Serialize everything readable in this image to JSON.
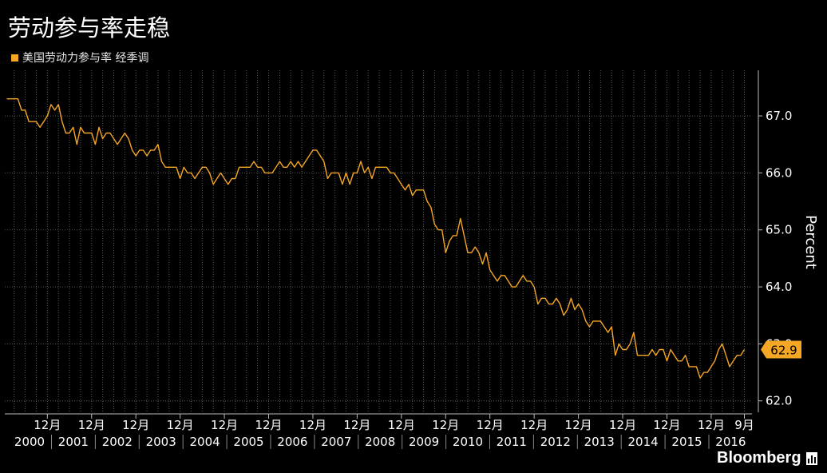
{
  "title": "劳动参与率走稳",
  "legend_label": "美国劳动力参与率 经季调",
  "brand": "Bloomberg",
  "colors": {
    "line": "#f5a623",
    "background": "#000000",
    "grid": "#5a5a5a",
    "text": "#ffffff"
  },
  "chart_data": {
    "type": "line",
    "title": "劳动参与率走稳",
    "ylabel": "Percent",
    "xlabel": "",
    "ylim": [
      61.8,
      67.8
    ],
    "y_ticks": [
      "62.0",
      "63.0",
      "64.0",
      "65.0",
      "66.0",
      "67.0"
    ],
    "x_tick_labels": [
      {
        "month": "12月",
        "year": "2000"
      },
      {
        "month": "12月",
        "year": "2001"
      },
      {
        "month": "12月",
        "year": "2002"
      },
      {
        "month": "12月",
        "year": "2003"
      },
      {
        "month": "12月",
        "year": "2004"
      },
      {
        "month": "12月",
        "year": "2005"
      },
      {
        "month": "12月",
        "year": "2006"
      },
      {
        "month": "12月",
        "year": "2007"
      },
      {
        "month": "12月",
        "year": "2008"
      },
      {
        "month": "12月",
        "year": "2009"
      },
      {
        "month": "12月",
        "year": "2010"
      },
      {
        "month": "12月",
        "year": "2011"
      },
      {
        "month": "12月",
        "year": "2012"
      },
      {
        "month": "12月",
        "year": "2013"
      },
      {
        "month": "12月",
        "year": "2014"
      },
      {
        "month": "12月",
        "year": "2015"
      },
      {
        "month": "9月",
        "year": "2016"
      }
    ],
    "last_value_label": "62.9",
    "series": [
      {
        "start": "2000-01",
        "values": [
          67.3,
          67.3,
          67.3,
          67.3,
          67.1,
          67.1,
          66.9,
          66.9,
          66.9,
          66.8,
          66.9,
          67.0,
          67.2,
          67.1,
          67.2,
          66.9,
          66.7,
          66.7,
          66.8,
          66.5,
          66.8,
          66.7,
          66.7,
          66.7,
          66.5,
          66.8,
          66.6,
          66.7,
          66.7,
          66.6,
          66.5,
          66.6,
          66.7,
          66.6,
          66.4,
          66.3,
          66.4,
          66.4,
          66.3,
          66.4,
          66.4,
          66.5,
          66.2,
          66.1,
          66.1,
          66.1,
          66.1,
          65.9,
          66.1,
          66.0,
          66.0,
          65.9,
          66.0,
          66.1,
          66.1,
          66.0,
          65.8,
          65.9,
          66.0,
          65.9,
          65.8,
          65.9,
          65.9,
          66.1,
          66.1,
          66.1,
          66.1,
          66.2,
          66.1,
          66.1,
          66.0,
          66.0,
          66.0,
          66.1,
          66.2,
          66.1,
          66.1,
          66.2,
          66.1,
          66.2,
          66.1,
          66.2,
          66.3,
          66.4,
          66.4,
          66.3,
          66.2,
          65.9,
          66.0,
          66.0,
          66.0,
          65.8,
          66.0,
          65.8,
          66.0,
          66.0,
          66.2,
          66.0,
          66.1,
          65.9,
          66.1,
          66.1,
          66.1,
          66.1,
          66.0,
          66.0,
          65.9,
          65.8,
          65.7,
          65.8,
          65.6,
          65.7,
          65.7,
          65.7,
          65.5,
          65.4,
          65.1,
          65.0,
          65.0,
          64.6,
          64.8,
          64.9,
          64.9,
          65.2,
          64.9,
          64.6,
          64.6,
          64.7,
          64.6,
          64.4,
          64.6,
          64.3,
          64.2,
          64.1,
          64.2,
          64.2,
          64.1,
          64.0,
          64.0,
          64.1,
          64.2,
          64.1,
          64.1,
          64.0,
          63.7,
          63.8,
          63.8,
          63.7,
          63.7,
          63.8,
          63.7,
          63.5,
          63.6,
          63.8,
          63.6,
          63.7,
          63.6,
          63.4,
          63.3,
          63.4,
          63.4,
          63.4,
          63.3,
          63.2,
          63.3,
          62.8,
          63.0,
          62.9,
          62.9,
          63.0,
          63.2,
          62.8,
          62.8,
          62.8,
          62.8,
          62.9,
          62.8,
          62.9,
          62.9,
          62.7,
          62.9,
          62.8,
          62.7,
          62.7,
          62.8,
          62.6,
          62.6,
          62.6,
          62.4,
          62.5,
          62.5,
          62.6,
          62.7,
          62.9,
          63.0,
          62.8,
          62.6,
          62.7,
          62.8,
          62.8,
          62.9
        ]
      }
    ]
  }
}
